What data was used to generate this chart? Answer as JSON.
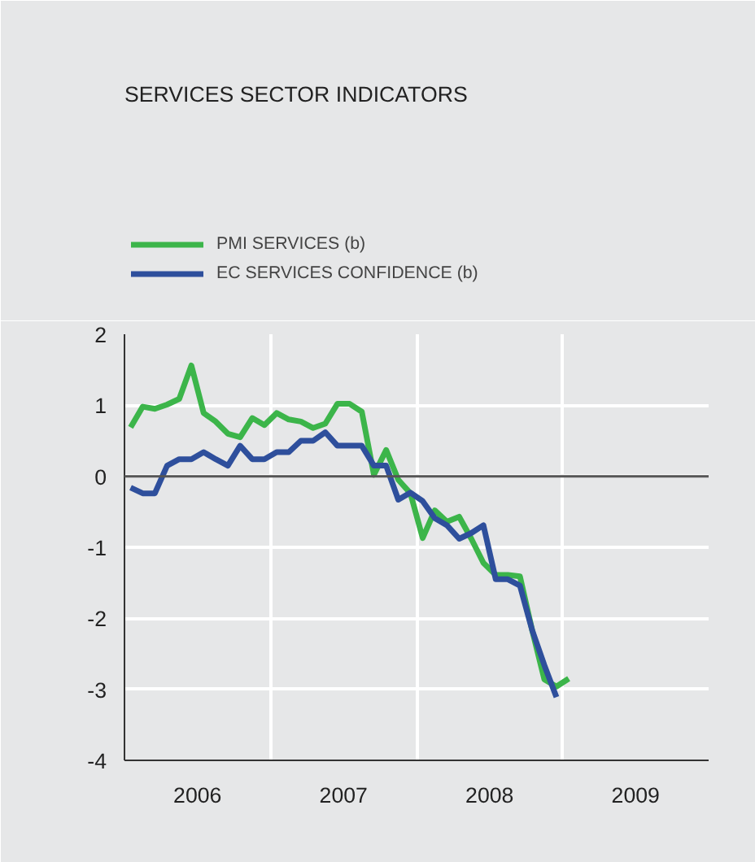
{
  "chart_data": {
    "type": "line",
    "title": "SERVICES SECTOR INDICATORS",
    "x": [
      2006.042,
      2006.125,
      2006.208,
      2006.292,
      2006.375,
      2006.458,
      2006.542,
      2006.625,
      2006.708,
      2006.792,
      2006.875,
      2006.958,
      2007.042,
      2007.125,
      2007.208,
      2007.292,
      2007.375,
      2007.458,
      2007.542,
      2007.625,
      2007.708,
      2007.792,
      2007.875,
      2007.958,
      2008.042,
      2008.125,
      2008.208,
      2008.292,
      2008.375,
      2008.458,
      2008.542,
      2008.625,
      2008.708,
      2008.792,
      2008.875,
      2008.958,
      2009.042
    ],
    "series": [
      {
        "name": "PMI SERVICES (b)",
        "color": "#3cb54a",
        "values": [
          0.69,
          0.98,
          0.95,
          1.01,
          1.09,
          1.56,
          0.89,
          0.77,
          0.6,
          0.55,
          0.82,
          0.72,
          0.89,
          0.8,
          0.77,
          0.68,
          0.74,
          1.02,
          1.02,
          0.91,
          0.02,
          0.37,
          -0.05,
          -0.24,
          -0.87,
          -0.48,
          -0.64,
          -0.57,
          -0.88,
          -1.22,
          -1.39,
          -1.39,
          -1.41,
          -2.17,
          -2.86,
          -2.96,
          -2.85
        ]
      },
      {
        "name": "EC SERVICES CONFIDENCE (b)",
        "color": "#2e4f9c",
        "values": [
          -0.16,
          -0.24,
          -0.24,
          0.15,
          0.24,
          0.24,
          0.34,
          0.24,
          0.15,
          0.43,
          0.24,
          0.24,
          0.34,
          0.34,
          0.5,
          0.5,
          0.62,
          0.43,
          0.43,
          0.43,
          0.15,
          0.15,
          -0.33,
          -0.23,
          -0.35,
          -0.59,
          -0.69,
          -0.88,
          -0.8,
          -0.69,
          -1.45,
          -1.45,
          -1.54,
          -2.17,
          -2.66,
          -3.11,
          null
        ]
      }
    ],
    "xlim": [
      2006,
      2010
    ],
    "xticks": [
      {
        "value": 2006,
        "label": null
      },
      {
        "value": 2006.5,
        "label": "2006"
      },
      {
        "value": 2007,
        "label": null
      },
      {
        "value": 2007.5,
        "label": "2007"
      },
      {
        "value": 2008,
        "label": null
      },
      {
        "value": 2008.5,
        "label": "2008"
      },
      {
        "value": 2009,
        "label": null
      },
      {
        "value": 2009.5,
        "label": "2009"
      },
      {
        "value": 2010,
        "label": null
      }
    ],
    "ylim": [
      -4,
      2
    ],
    "yticks": [
      -4,
      -3,
      -2,
      -1,
      0,
      1,
      2
    ],
    "ref_lines": [
      {
        "axis": "y",
        "value": 0,
        "color": "#555555"
      }
    ],
    "grid": true,
    "legend": "top left",
    "marker": "none",
    "line_style": "solid"
  }
}
